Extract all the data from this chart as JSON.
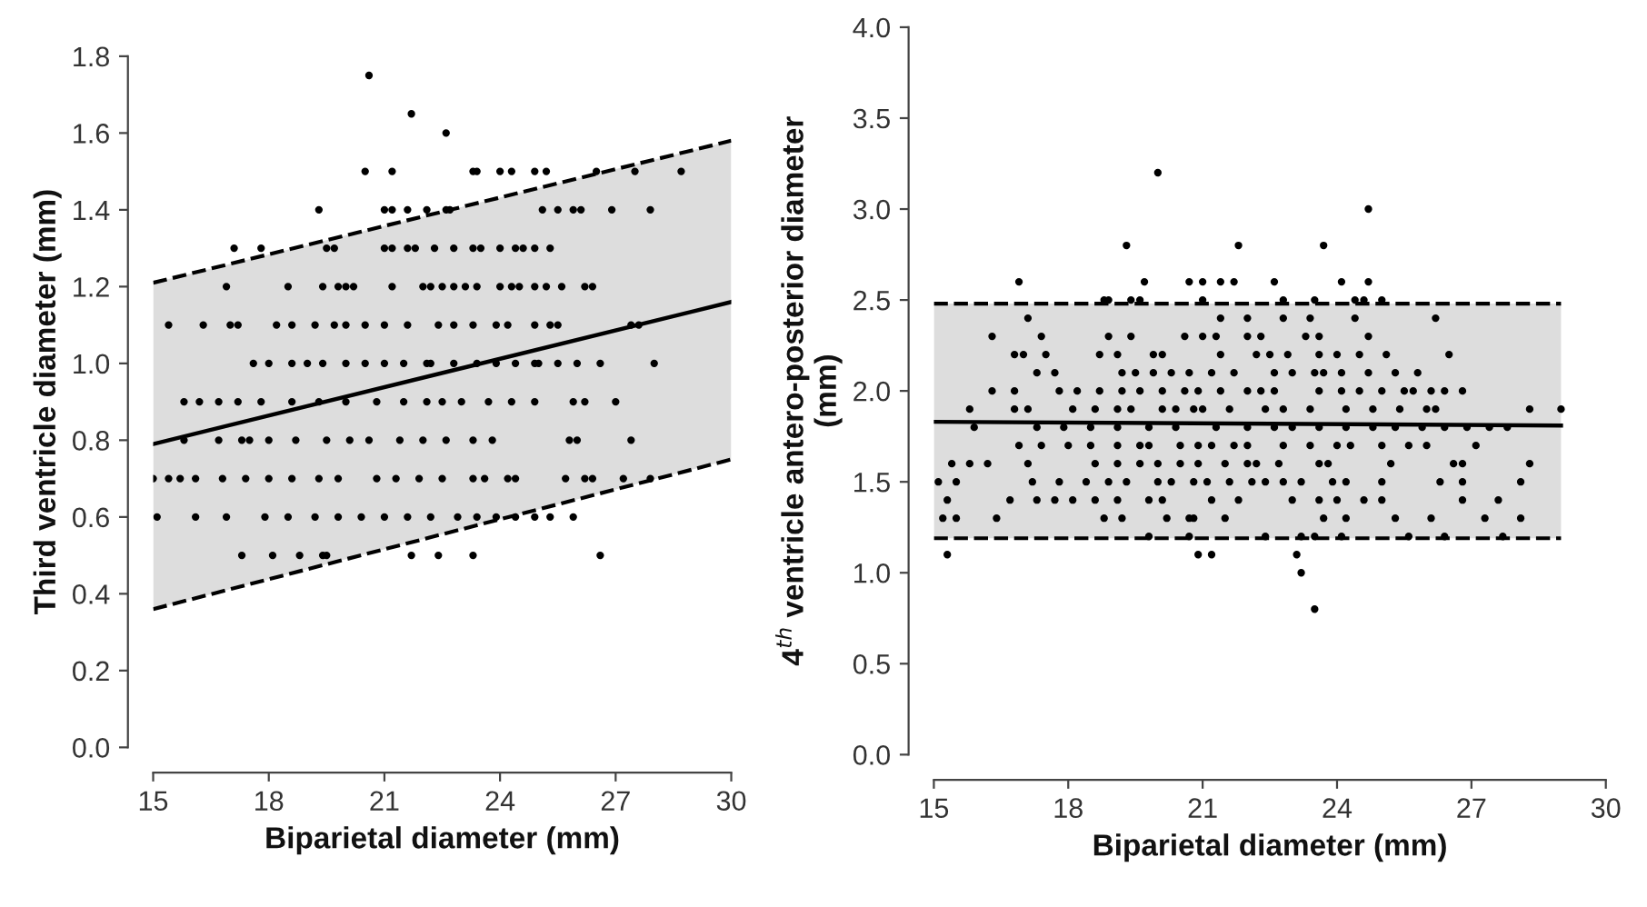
{
  "chart_data": [
    {
      "type": "scatter",
      "xlabel": "Biparietal diameter (mm)",
      "ylabel": "Third ventricle diameter (mm)",
      "xlim": [
        15,
        30
      ],
      "xticks": [
        15,
        18,
        21,
        24,
        27,
        30
      ],
      "ylim": [
        0,
        1.8
      ],
      "yticks": [
        {
          "value": 0,
          "label": "0.0"
        },
        0.2,
        0.4,
        0.6,
        0.8,
        {
          "value": 1,
          "label": "1.0"
        },
        1.2,
        1.4,
        1.6,
        1.8
      ],
      "grid": false,
      "series": [
        {
          "marker": "circle",
          "color": "#000000",
          "x": [
            20.6,
            21.7,
            22.6,
            20.5,
            21.2,
            23.3,
            23.4,
            24.0,
            24.3,
            24.9,
            25.2,
            26.5,
            27.5,
            28.7,
            19.3,
            21.0,
            21.2,
            21.6,
            22.1,
            22.6,
            22.7,
            25.1,
            25.5,
            25.9,
            26.1,
            26.9,
            27.9,
            17.1,
            17.8,
            19.5,
            19.7,
            21.0,
            21.2,
            21.6,
            21.8,
            22.3,
            22.8,
            23.3,
            23.5,
            24.0,
            24.4,
            24.6,
            24.9,
            25.3,
            16.9,
            18.5,
            19.4,
            19.8,
            20.0,
            20.2,
            21.2,
            22.0,
            22.2,
            22.5,
            22.8,
            23.1,
            23.4,
            24.0,
            24.3,
            24.5,
            24.9,
            25.2,
            25.6,
            26.2,
            26.4,
            15.4,
            16.3,
            17.0,
            17.2,
            18.2,
            18.6,
            19.2,
            19.7,
            20.0,
            20.5,
            21.0,
            21.6,
            22.4,
            22.8,
            23.3,
            23.9,
            24.2,
            24.9,
            25.3,
            25.5,
            27.4,
            27.6,
            17.6,
            18.0,
            18.6,
            19.0,
            19.4,
            20.0,
            20.5,
            21.0,
            21.5,
            22.1,
            22.2,
            22.8,
            23.4,
            23.9,
            24.4,
            24.9,
            25.0,
            25.5,
            26.0,
            26.6,
            28.0,
            15.8,
            16.2,
            16.7,
            17.2,
            17.8,
            18.6,
            19.3,
            20.0,
            20.8,
            21.5,
            22.1,
            22.5,
            23.0,
            23.7,
            24.3,
            24.9,
            25.9,
            26.2,
            27.0,
            15.8,
            16.7,
            17.3,
            17.5,
            18.0,
            18.7,
            19.5,
            20.1,
            20.6,
            21.4,
            22.0,
            22.6,
            23.3,
            23.8,
            25.8,
            26.0,
            27.4,
            15.0,
            15.4,
            15.7,
            16.1,
            16.8,
            17.4,
            18.0,
            18.6,
            19.3,
            19.8,
            20.8,
            21.3,
            21.9,
            22.5,
            23.3,
            23.6,
            24.2,
            24.4,
            25.7,
            26.2,
            26.4,
            27.2,
            27.9,
            15.1,
            16.1,
            16.9,
            17.9,
            18.5,
            19.2,
            19.8,
            20.4,
            21.0,
            21.6,
            22.2,
            22.9,
            23.4,
            23.9,
            24.4,
            24.9,
            25.3,
            25.9,
            17.3,
            18.1,
            18.8,
            19.4,
            19.5,
            21.7,
            22.4,
            23.3,
            26.6
          ],
          "values": [
            1.75,
            1.65,
            1.6,
            1.5,
            1.5,
            1.5,
            1.5,
            1.5,
            1.5,
            1.5,
            1.5,
            1.5,
            1.5,
            1.5,
            1.4,
            1.4,
            1.4,
            1.4,
            1.4,
            1.4,
            1.4,
            1.4,
            1.4,
            1.4,
            1.4,
            1.4,
            1.4,
            1.3,
            1.3,
            1.3,
            1.3,
            1.3,
            1.3,
            1.3,
            1.3,
            1.3,
            1.3,
            1.3,
            1.3,
            1.3,
            1.3,
            1.3,
            1.3,
            1.3,
            1.2,
            1.2,
            1.2,
            1.2,
            1.2,
            1.2,
            1.2,
            1.2,
            1.2,
            1.2,
            1.2,
            1.2,
            1.2,
            1.2,
            1.2,
            1.2,
            1.2,
            1.2,
            1.2,
            1.2,
            1.2,
            1.1,
            1.1,
            1.1,
            1.1,
            1.1,
            1.1,
            1.1,
            1.1,
            1.1,
            1.1,
            1.1,
            1.1,
            1.1,
            1.1,
            1.1,
            1.1,
            1.1,
            1.1,
            1.1,
            1.1,
            1.1,
            1.1,
            1.0,
            1.0,
            1.0,
            1.0,
            1.0,
            1.0,
            1.0,
            1.0,
            1.0,
            1.0,
            1.0,
            1.0,
            1.0,
            1.0,
            1.0,
            1.0,
            1.0,
            1.0,
            1.0,
            1.0,
            1.0,
            0.9,
            0.9,
            0.9,
            0.9,
            0.9,
            0.9,
            0.9,
            0.9,
            0.9,
            0.9,
            0.9,
            0.9,
            0.9,
            0.9,
            0.9,
            0.9,
            0.9,
            0.9,
            0.9,
            0.8,
            0.8,
            0.8,
            0.8,
            0.8,
            0.8,
            0.8,
            0.8,
            0.8,
            0.8,
            0.8,
            0.8,
            0.8,
            0.8,
            0.8,
            0.8,
            0.8,
            0.7,
            0.7,
            0.7,
            0.7,
            0.7,
            0.7,
            0.7,
            0.7,
            0.7,
            0.7,
            0.7,
            0.7,
            0.7,
            0.7,
            0.7,
            0.7,
            0.7,
            0.7,
            0.7,
            0.7,
            0.7,
            0.7,
            0.7,
            0.6,
            0.6,
            0.6,
            0.6,
            0.6,
            0.6,
            0.6,
            0.6,
            0.6,
            0.6,
            0.6,
            0.6,
            0.6,
            0.6,
            0.6,
            0.6,
            0.6,
            0.6,
            0.5,
            0.5,
            0.5,
            0.5,
            0.5,
            0.5,
            0.5,
            0.5,
            0.5
          ]
        },
        {
          "type": "line",
          "color": "#000000",
          "line_style": "solid",
          "x": [
            15,
            30
          ],
          "values": [
            0.79,
            1.16
          ],
          "lower": [
            0.36,
            0.75
          ],
          "upper": [
            1.21,
            1.58
          ]
        },
        {
          "type": "line",
          "color": "#000000",
          "line_style": "dashed",
          "x": [
            15,
            30
          ],
          "values": [
            1.21,
            1.58
          ]
        },
        {
          "type": "line",
          "color": "#000000",
          "line_style": "dashed",
          "x": [
            15,
            30
          ],
          "values": [
            0.36,
            0.75
          ]
        }
      ]
    },
    {
      "type": "scatter",
      "xlabel": "Biparietal diameter (mm)",
      "ylabel": "4$^{th}$ ventricle antero-posterior diameter\n(mm)",
      "xlim": [
        15,
        30
      ],
      "xticks": [
        15,
        18,
        21,
        24,
        27,
        30
      ],
      "ylim": [
        0,
        4.0
      ],
      "yticks": [
        {
          "value": 0,
          "label": "0.0"
        },
        0.5,
        {
          "value": 1,
          "label": "1.0"
        },
        1.5,
        {
          "value": 2,
          "label": "2.0"
        },
        2.5,
        {
          "value": 3,
          "label": "3.0"
        },
        3.5,
        {
          "value": 4,
          "label": "4.0"
        }
      ],
      "grid": false,
      "series": [
        {
          "marker": "circle",
          "color": "#000000",
          "x": [
            20.0,
            24.7,
            19.3,
            21.8,
            23.7,
            16.9,
            19.7,
            20.7,
            21.0,
            21.4,
            21.7,
            22.6,
            24.1,
            24.7,
            18.8,
            18.9,
            19.4,
            19.6,
            21.0,
            22.8,
            23.5,
            24.4,
            24.6,
            25.0,
            17.1,
            21.4,
            22.0,
            22.8,
            23.4,
            24.4,
            26.2,
            16.3,
            17.4,
            18.9,
            19.4,
            20.6,
            21.0,
            21.3,
            22.0,
            22.3,
            23.3,
            23.6,
            24.7,
            16.8,
            17.0,
            17.5,
            18.7,
            19.1,
            19.9,
            20.1,
            21.4,
            22.2,
            22.5,
            22.9,
            23.6,
            24.0,
            24.5,
            25.1,
            26.5,
            17.3,
            17.7,
            19.2,
            19.5,
            19.9,
            20.3,
            20.7,
            21.2,
            21.7,
            22.6,
            23.0,
            23.5,
            23.7,
            24.1,
            24.7,
            25.3,
            25.8,
            16.3,
            16.8,
            17.8,
            18.2,
            18.7,
            19.2,
            19.6,
            20.1,
            20.6,
            20.9,
            21.4,
            22.0,
            22.3,
            22.6,
            23.6,
            24.1,
            24.5,
            25.0,
            25.5,
            25.7,
            26.1,
            26.4,
            26.8,
            15.8,
            16.8,
            17.1,
            18.1,
            18.6,
            19.1,
            19.4,
            20.1,
            20.4,
            20.8,
            21.0,
            21.6,
            22.4,
            22.8,
            23.4,
            24.2,
            24.8,
            25.4,
            26.0,
            26.2,
            28.3,
            29.0,
            15.9,
            17.3,
            17.9,
            18.5,
            19.1,
            19.8,
            20.4,
            21.3,
            22.0,
            22.6,
            23.0,
            23.6,
            24.2,
            24.8,
            25.3,
            25.9,
            26.4,
            26.9,
            27.4,
            27.8,
            16.9,
            17.4,
            18.0,
            18.5,
            19.1,
            19.6,
            19.8,
            20.5,
            20.9,
            21.2,
            21.7,
            22.0,
            22.8,
            23.4,
            24.0,
            24.3,
            25.0,
            25.6,
            26.0,
            27.1,
            15.4,
            15.8,
            16.2,
            17.1,
            18.6,
            19.1,
            19.6,
            20.0,
            20.5,
            20.9,
            21.5,
            22.0,
            22.2,
            22.7,
            23.6,
            23.8,
            25.2,
            26.6,
            26.8,
            28.3,
            15.1,
            15.5,
            17.2,
            17.8,
            18.4,
            18.9,
            19.3,
            20.0,
            20.3,
            20.8,
            21.1,
            21.6,
            22.1,
            22.4,
            22.8,
            23.2,
            23.9,
            24.2,
            25.0,
            26.3,
            26.8,
            28.1,
            15.3,
            16.7,
            17.3,
            17.7,
            18.1,
            18.6,
            19.1,
            19.8,
            20.1,
            21.2,
            21.8,
            23.0,
            23.6,
            24.0,
            24.6,
            25.0,
            26.8,
            27.6,
            15.2,
            15.5,
            16.4,
            18.8,
            19.2,
            20.2,
            20.7,
            20.8,
            21.5,
            23.7,
            24.2,
            25.3,
            26.1,
            27.3,
            28.1,
            19.8,
            20.7,
            22.4,
            23.2,
            23.5,
            24.1,
            25.6,
            26.4,
            27.7,
            15.3,
            20.9,
            21.2,
            23.1,
            23.2,
            23.5
          ],
          "values": [
            3.2,
            3.0,
            2.8,
            2.8,
            2.8,
            2.6,
            2.6,
            2.6,
            2.6,
            2.6,
            2.6,
            2.6,
            2.6,
            2.6,
            2.5,
            2.5,
            2.5,
            2.5,
            2.5,
            2.5,
            2.5,
            2.5,
            2.5,
            2.5,
            2.4,
            2.4,
            2.4,
            2.4,
            2.4,
            2.4,
            2.4,
            2.3,
            2.3,
            2.3,
            2.3,
            2.3,
            2.3,
            2.3,
            2.3,
            2.3,
            2.3,
            2.3,
            2.3,
            2.2,
            2.2,
            2.2,
            2.2,
            2.2,
            2.2,
            2.2,
            2.2,
            2.2,
            2.2,
            2.2,
            2.2,
            2.2,
            2.2,
            2.2,
            2.2,
            2.1,
            2.1,
            2.1,
            2.1,
            2.1,
            2.1,
            2.1,
            2.1,
            2.1,
            2.1,
            2.1,
            2.1,
            2.1,
            2.1,
            2.1,
            2.1,
            2.1,
            2.0,
            2.0,
            2.0,
            2.0,
            2.0,
            2.0,
            2.0,
            2.0,
            2.0,
            2.0,
            2.0,
            2.0,
            2.0,
            2.0,
            2.0,
            2.0,
            2.0,
            2.0,
            2.0,
            2.0,
            2.0,
            2.0,
            2.0,
            1.9,
            1.9,
            1.9,
            1.9,
            1.9,
            1.9,
            1.9,
            1.9,
            1.9,
            1.9,
            1.9,
            1.9,
            1.9,
            1.9,
            1.9,
            1.9,
            1.9,
            1.9,
            1.9,
            1.9,
            1.9,
            1.9,
            1.8,
            1.8,
            1.8,
            1.8,
            1.8,
            1.8,
            1.8,
            1.8,
            1.8,
            1.8,
            1.8,
            1.8,
            1.8,
            1.8,
            1.8,
            1.8,
            1.8,
            1.8,
            1.8,
            1.8,
            1.7,
            1.7,
            1.7,
            1.7,
            1.7,
            1.7,
            1.7,
            1.7,
            1.7,
            1.7,
            1.7,
            1.7,
            1.7,
            1.7,
            1.7,
            1.7,
            1.7,
            1.7,
            1.7,
            1.7,
            1.6,
            1.6,
            1.6,
            1.6,
            1.6,
            1.6,
            1.6,
            1.6,
            1.6,
            1.6,
            1.6,
            1.6,
            1.6,
            1.6,
            1.6,
            1.6,
            1.6,
            1.6,
            1.6,
            1.6,
            1.5,
            1.5,
            1.5,
            1.5,
            1.5,
            1.5,
            1.5,
            1.5,
            1.5,
            1.5,
            1.5,
            1.5,
            1.5,
            1.5,
            1.5,
            1.5,
            1.5,
            1.5,
            1.5,
            1.5,
            1.5,
            1.5,
            1.4,
            1.4,
            1.4,
            1.4,
            1.4,
            1.4,
            1.4,
            1.4,
            1.4,
            1.4,
            1.4,
            1.4,
            1.4,
            1.4,
            1.4,
            1.4,
            1.4,
            1.4,
            1.3,
            1.3,
            1.3,
            1.3,
            1.3,
            1.3,
            1.3,
            1.3,
            1.3,
            1.3,
            1.3,
            1.3,
            1.3,
            1.3,
            1.3,
            1.2,
            1.2,
            1.2,
            1.2,
            1.2,
            1.2,
            1.2,
            1.2,
            1.2,
            1.1,
            1.1,
            1.1,
            1.1,
            1.0,
            0.8
          ]
        },
        {
          "type": "line",
          "color": "#000000",
          "line_style": "solid",
          "x": [
            15,
            29
          ],
          "values": [
            1.83,
            1.81
          ],
          "lower": [
            1.19,
            1.19
          ],
          "upper": [
            2.48,
            2.48
          ]
        },
        {
          "type": "line",
          "color": "#000000",
          "line_style": "dashed",
          "x": [
            15,
            29
          ],
          "values": [
            2.48,
            2.48
          ]
        },
        {
          "type": "line",
          "color": "#000000",
          "line_style": "dashed",
          "x": [
            15,
            29
          ],
          "values": [
            1.19,
            1.19
          ]
        }
      ]
    }
  ]
}
